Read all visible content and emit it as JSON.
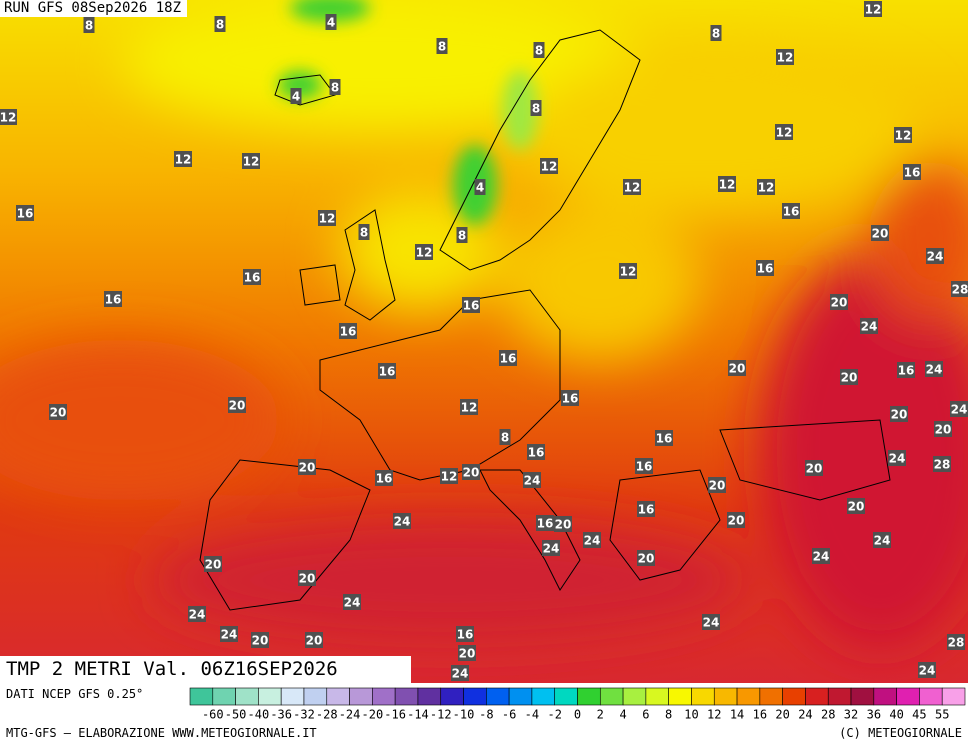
{
  "header": {
    "run": "RUN GFS 08Sep2026 18Z",
    "title": "TMP 2 METRI Val. 06Z16SEP2026"
  },
  "map_labels": [
    8,
    8,
    4,
    8,
    8,
    8,
    12,
    12,
    4,
    8,
    8,
    12,
    12,
    12,
    12,
    12,
    12,
    16,
    12,
    12,
    12,
    4,
    16,
    12,
    16,
    8,
    8,
    20,
    12,
    24,
    12,
    16,
    16,
    28,
    16,
    16,
    20,
    24,
    16,
    16,
    20,
    16,
    20,
    16,
    24,
    16,
    20,
    20,
    12,
    20,
    24,
    20,
    8,
    16,
    16,
    24,
    28,
    20,
    16,
    20,
    16,
    12,
    20,
    24,
    20,
    20,
    24,
    16,
    16,
    20,
    20,
    24,
    24,
    24,
    20,
    20,
    24,
    20,
    24,
    24,
    24,
    20,
    20,
    16,
    24,
    20,
    24,
    28,
    24
  ],
  "legend": {
    "source": "DATI NCEP GFS 0.25°",
    "labels": [
      -60,
      -50,
      -40,
      -36,
      -32,
      -28,
      -24,
      -20,
      -16,
      -14,
      -12,
      -10,
      -8,
      -6,
      -4,
      -2,
      0,
      2,
      4,
      6,
      8,
      10,
      12,
      14,
      16,
      20,
      24,
      28,
      32,
      36,
      40,
      45,
      55
    ],
    "colors": [
      "#3fc59a",
      "#6fd3b0",
      "#9fe2c8",
      "#c8f0e0",
      "#d8e8f8",
      "#c0d0f0",
      "#c8b8e8",
      "#b898d8",
      "#a070c8",
      "#8050b0",
      "#6030a0",
      "#3020c0",
      "#1030e0",
      "#0060f0",
      "#0090f0",
      "#00c0f0",
      "#00d8c0",
      "#30d030",
      "#70e040",
      "#a8f040",
      "#d8f820",
      "#f8f800",
      "#f8d800",
      "#f8b800",
      "#f89800",
      "#f07000",
      "#e84000",
      "#d82020",
      "#c01830",
      "#a01040",
      "#c01080",
      "#e020b0",
      "#f060d0",
      "#f8a0e8"
    ]
  },
  "footer": {
    "left": "MTG-GFS — ELABORAZIONE WWW.METEOGIORNALE.IT",
    "right": "(C) METEOGIORNALE"
  }
}
